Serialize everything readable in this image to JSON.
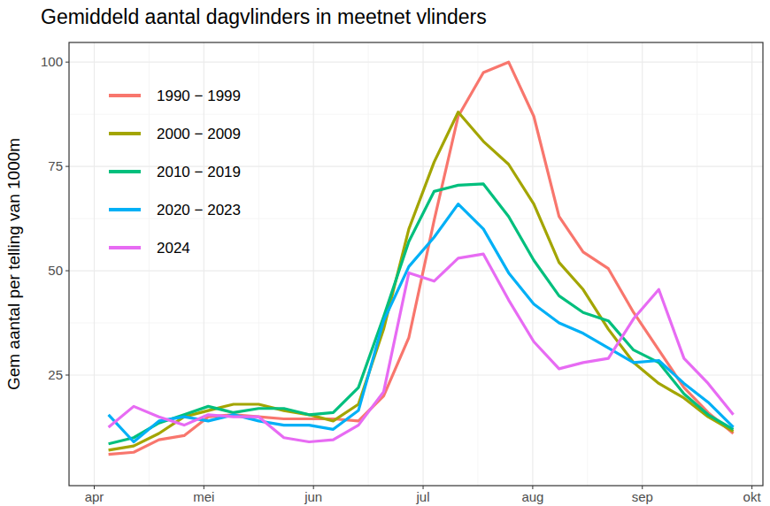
{
  "chart_data": {
    "type": "line",
    "title": "Gemiddeld aantal dagvlinders in meetnet vlinders",
    "y_label": "Gem aantal per telling van 1000m",
    "x": [
      4.13,
      4.36,
      4.59,
      4.82,
      5.04,
      5.27,
      5.5,
      5.73,
      5.96,
      6.18,
      6.41,
      6.64,
      6.87,
      7.1,
      7.32,
      7.55,
      7.78,
      8.01,
      8.24,
      8.46,
      8.69,
      8.92,
      9.15,
      9.38,
      9.6,
      9.83
    ],
    "xlim": [
      3.77,
      10.1
    ],
    "xticks": [
      {
        "value": 4,
        "label": "apr"
      },
      {
        "value": 5,
        "label": "mei"
      },
      {
        "value": 6,
        "label": "jun"
      },
      {
        "value": 7,
        "label": "jul"
      },
      {
        "value": 8,
        "label": "aug"
      },
      {
        "value": 9,
        "label": "sep"
      },
      {
        "value": 10,
        "label": "okt"
      }
    ],
    "ylim": [
      -1.5,
      104.7
    ],
    "yticks": [
      25,
      50,
      75,
      100
    ],
    "grid": true,
    "legend": "top-left",
    "series": [
      {
        "name": "1990 − 1999",
        "color": "#F8766D",
        "values": [
          6,
          6.5,
          9.5,
          10.5,
          15,
          15.5,
          15,
          14.5,
          14.5,
          14.5,
          14,
          20,
          34,
          62,
          87,
          97.5,
          100,
          87,
          63,
          54.5,
          50.5,
          40,
          31,
          22,
          16,
          11
        ]
      },
      {
        "name": "2000 − 2009",
        "color": "#A3A500",
        "values": [
          7,
          8,
          11,
          15,
          16.5,
          18,
          18,
          16.5,
          15.5,
          14,
          18,
          36,
          60,
          76,
          88,
          81,
          75.5,
          66,
          52,
          45.5,
          36,
          28,
          23,
          19.5,
          15,
          11.5
        ]
      },
      {
        "name": "2010 − 2019",
        "color": "#00BF7D",
        "values": [
          8.5,
          10,
          13.5,
          15.5,
          17.5,
          16,
          17,
          17,
          15.5,
          16,
          22,
          39,
          57,
          69,
          70.5,
          70.8,
          63,
          52.5,
          44,
          40,
          38,
          31,
          28,
          20.5,
          15.5,
          12
        ]
      },
      {
        "name": "2020 − 2023",
        "color": "#00B0F6",
        "values": [
          15.5,
          9,
          14,
          15,
          14,
          15.5,
          14,
          13,
          13,
          12,
          16.5,
          38,
          51,
          58,
          66,
          60,
          49.5,
          42,
          37.5,
          35,
          31.5,
          28,
          28.5,
          23,
          18.5,
          12.5
        ]
      },
      {
        "name": "2024",
        "color": "#E76BF3",
        "values": [
          12.5,
          17.5,
          15,
          13,
          15.5,
          15,
          15,
          10,
          9,
          9.5,
          13,
          21,
          49.5,
          47.5,
          53,
          54,
          43,
          33,
          26.5,
          28,
          29,
          38.5,
          45.5,
          29,
          23,
          15.5
        ]
      }
    ]
  }
}
